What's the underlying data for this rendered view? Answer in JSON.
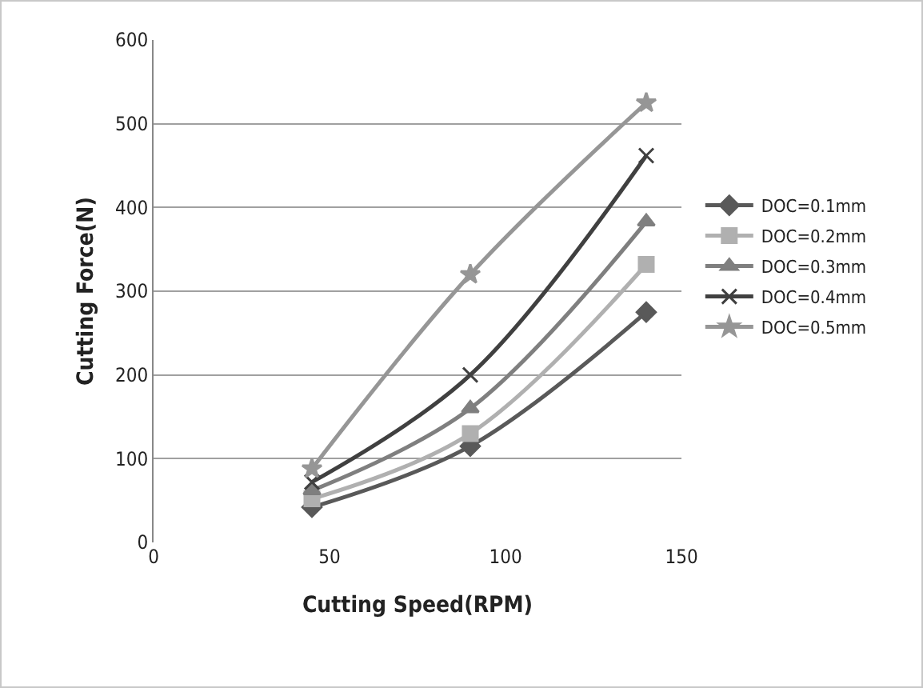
{
  "chart_data": {
    "type": "line",
    "xlabel": "Cutting Speed(RPM)",
    "ylabel": "Cutting Force(N)",
    "x": [
      45,
      90,
      140
    ],
    "xlim": [
      0,
      150
    ],
    "xticks": [
      0,
      50,
      100,
      150
    ],
    "ylim": [
      0,
      600
    ],
    "yticks": [
      0,
      100,
      200,
      300,
      400,
      500,
      600
    ],
    "grid": "y",
    "legend": "right",
    "series": [
      {
        "name": "DOC=0.1mm",
        "color": "#595959",
        "marker": "diamond",
        "values": [
          42,
          115,
          275
        ]
      },
      {
        "name": "DOC=0.2mm",
        "color": "#b0b0b0",
        "marker": "square",
        "values": [
          52,
          130,
          332
        ]
      },
      {
        "name": "DOC=0.3mm",
        "color": "#7f7f7f",
        "marker": "triangle",
        "values": [
          62,
          160,
          383
        ]
      },
      {
        "name": "DOC=0.4mm",
        "color": "#404040",
        "marker": "cross",
        "values": [
          72,
          200,
          462
        ]
      },
      {
        "name": "DOC=0.5mm",
        "color": "#969696",
        "marker": "star",
        "values": [
          88,
          320,
          525
        ]
      }
    ]
  }
}
